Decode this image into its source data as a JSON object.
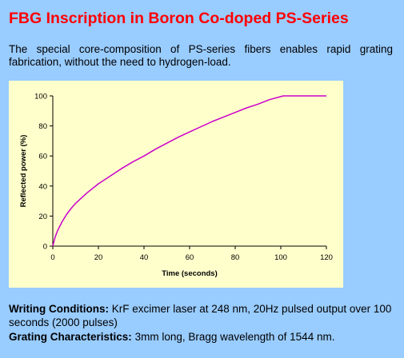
{
  "title": "FBG Inscription in Boron Co-doped PS-Series",
  "intro": "The special core-composition of PS-series fibers enables rapid grating fabrication, without the need to hydrogen-load.",
  "chart_data": {
    "type": "line",
    "title": "",
    "xlabel": "Time (seconds)",
    "ylabel": "Reflected power (%)",
    "xlim": [
      0,
      120
    ],
    "ylim": [
      0,
      100
    ],
    "xticks": [
      0,
      20,
      40,
      60,
      80,
      100,
      120
    ],
    "yticks": [
      0,
      20,
      40,
      60,
      80,
      100
    ],
    "grid": false,
    "legend": "none",
    "line_color": "#cc00cc",
    "series": [
      {
        "x": [
          0,
          1,
          2,
          4,
          6,
          8,
          10,
          15,
          20,
          25,
          30,
          35,
          40,
          45,
          50,
          55,
          60,
          65,
          70,
          75,
          80,
          85,
          90,
          95,
          100,
          101,
          105,
          110,
          115,
          120
        ],
        "values": [
          0,
          6,
          10,
          16,
          21,
          25,
          28.5,
          35.5,
          41.5,
          46.5,
          51.5,
          56,
          60,
          64.5,
          68.5,
          72.5,
          76,
          79.5,
          83,
          86,
          89,
          92,
          94.5,
          97.5,
          99.5,
          100,
          100,
          100,
          100,
          100
        ]
      }
    ]
  },
  "notes": {
    "writing_label": "Writing Conditions:",
    "writing_text": " KrF excimer laser at 248 nm, 20Hz pulsed output over 100 seconds (2000 pulses)",
    "grating_label": "Grating Characteristics:",
    "grating_text": "  3mm long, Bragg wavelength of 1544 nm."
  }
}
